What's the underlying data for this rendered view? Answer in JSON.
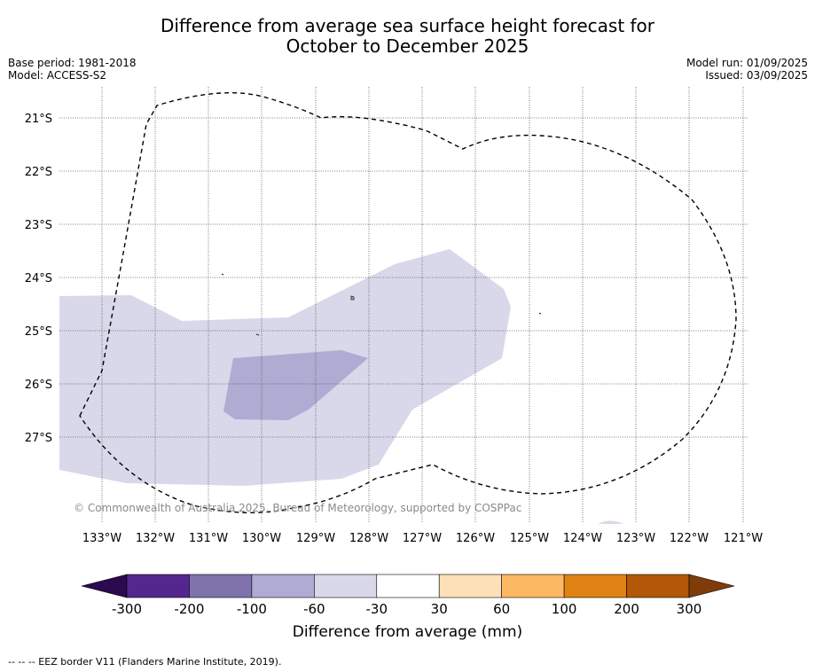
{
  "header": {
    "title_line1": "Difference from average sea surface height forecast for",
    "title_line2": "October to December 2025",
    "base_period": "Base period: 1981-2018",
    "model": "Model: ACCESS-S2",
    "model_run": "Model run: 01/09/2025",
    "issued": "Issued: 03/09/2025"
  },
  "map": {
    "copyright": "© Commonwealth of Australia 2025, Bureau of Meteorology, supported by COSPPac",
    "lon_labels": [
      "133°W",
      "132°W",
      "131°W",
      "130°W",
      "129°W",
      "128°W",
      "127°W",
      "126°W",
      "125°W",
      "124°W",
      "123°W",
      "122°W",
      "121°W"
    ],
    "lat_labels": [
      "21°S",
      "22°S",
      "23°S",
      "24°S",
      "25°S",
      "26°S",
      "27°S"
    ],
    "colors": {
      "light": "#d8d8ea",
      "medium": "#b0abd3",
      "grid": "#555555"
    }
  },
  "colorbar": {
    "label": "Difference from average (mm)",
    "ticks": [
      "-300",
      "-200",
      "-100",
      "-60",
      "-30",
      "30",
      "60",
      "100",
      "200",
      "300"
    ],
    "colors": [
      "#2b0a50",
      "#54278f",
      "#8072ab",
      "#b0abd3",
      "#d8d8ea",
      "#ffffff",
      "#fee0b6",
      "#fdb863",
      "#e08214",
      "#b35806",
      "#7f3b08"
    ]
  },
  "footer": {
    "eez_note": "--  --  -- EEZ border V11 (Flanders Marine Institute, 2019)."
  }
}
